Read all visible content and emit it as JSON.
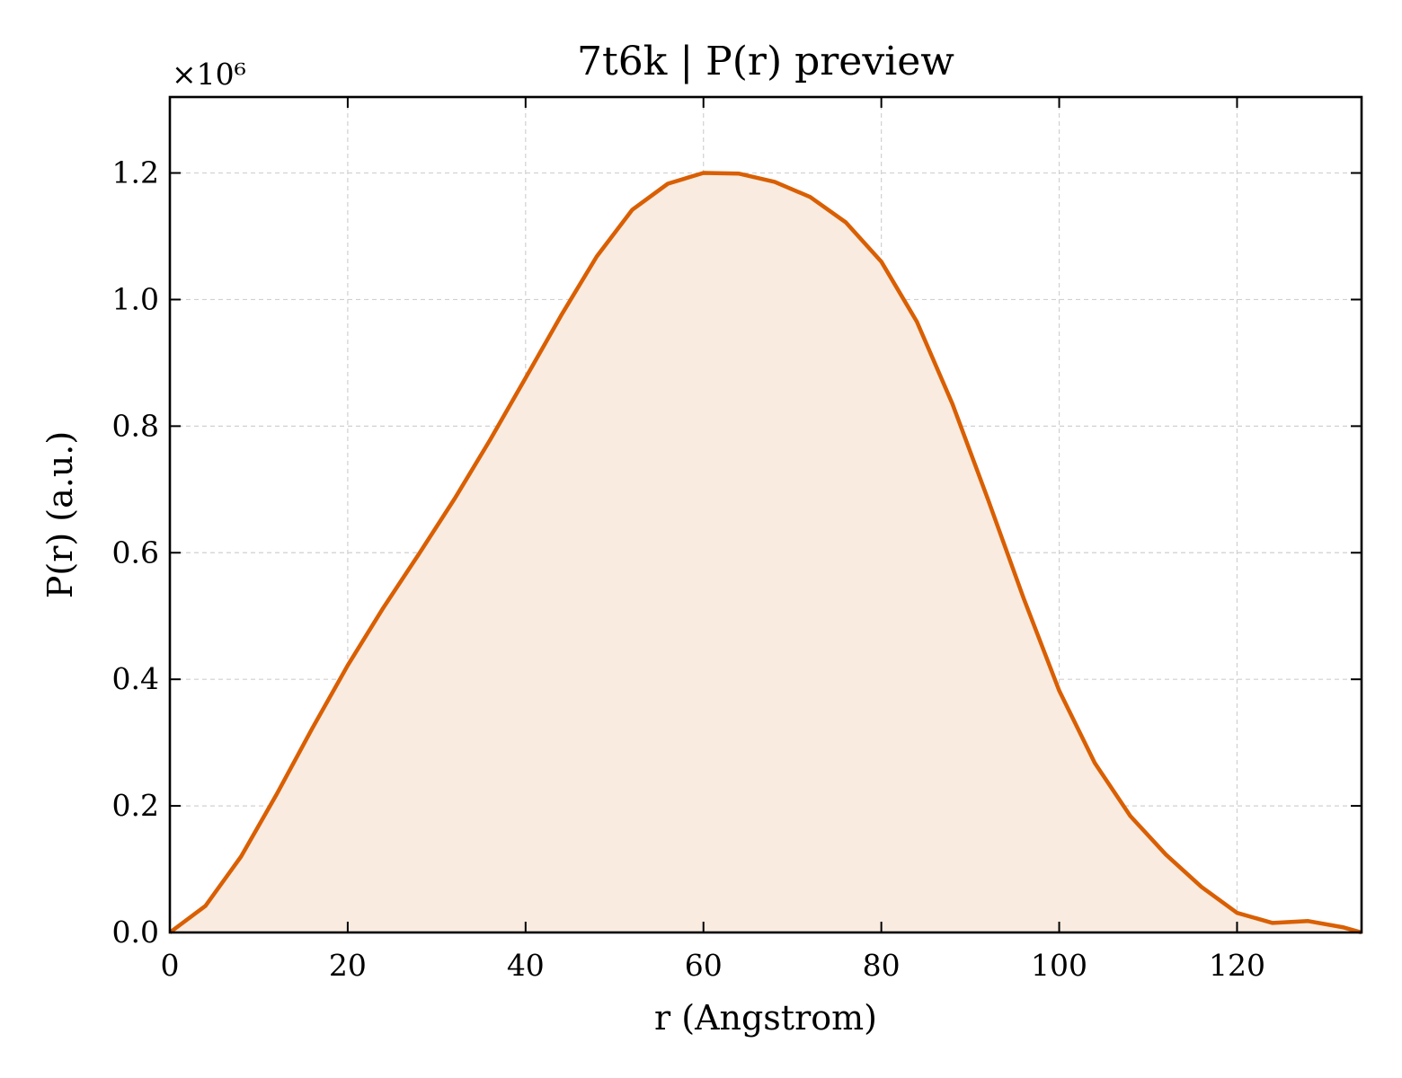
{
  "chart_data": {
    "type": "area",
    "title": "7t6k | P(r) preview",
    "xlabel": "r (Angstrom)",
    "ylabel": "P(r) (a.u.)",
    "y_scale_multiplier": "×10⁶",
    "xlim": [
      0,
      134
    ],
    "ylim": [
      0,
      1.32
    ],
    "x_ticks": [
      0,
      20,
      40,
      60,
      80,
      100,
      120
    ],
    "y_ticks": [
      0.0,
      0.2,
      0.4,
      0.6,
      0.8,
      1.0,
      1.2
    ],
    "x_tick_labels": [
      "0",
      "20",
      "40",
      "60",
      "80",
      "100",
      "120"
    ],
    "y_tick_labels": [
      "0.0",
      "0.2",
      "0.4",
      "0.6",
      "0.8",
      "1.0",
      "1.2"
    ],
    "grid": true,
    "colors": {
      "line": "#d95f02",
      "fill": "#f9ebe0"
    },
    "series": [
      {
        "x": [
          0,
          4,
          8,
          12,
          16,
          20,
          24,
          28,
          32,
          36,
          40,
          44,
          48,
          52,
          56,
          60,
          64,
          68,
          72,
          76,
          80,
          84,
          88,
          92,
          96,
          100,
          104,
          108,
          112,
          116,
          120,
          124,
          128,
          132,
          134
        ],
        "y": [
          0.0,
          0.042,
          0.12,
          0.218,
          0.322,
          0.422,
          0.513,
          0.598,
          0.685,
          0.778,
          0.876,
          0.975,
          1.068,
          1.142,
          1.183,
          1.2,
          1.199,
          1.186,
          1.162,
          1.122,
          1.06,
          0.965,
          0.835,
          0.684,
          0.528,
          0.382,
          0.268,
          0.184,
          0.123,
          0.072,
          0.031,
          0.015,
          0.018,
          0.008,
          0.0
        ]
      }
    ]
  }
}
